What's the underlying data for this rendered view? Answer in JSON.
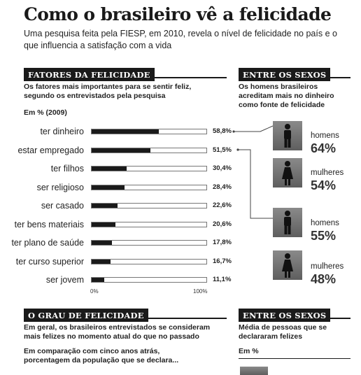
{
  "header": {
    "title": "Como o brasileiro vê a felicidade",
    "subtitle": "Uma pesquisa feita pela FIESP, em 2010, revela o nível de felicidade no país e o que influencia a satisfação com a vida"
  },
  "left_section": {
    "tag": "FATORES DA FELICIDADE",
    "note": "Os fatores mais importantes para se sentir feliz, segundo os entrevistados pela pesquisa",
    "unit": "Em % (2009)"
  },
  "right_section": {
    "tag": "ENTRE OS SEXOS",
    "note": "Os homens brasileiros acreditam mais no dinheiro como fonte de felicidade",
    "groups": [
      {
        "label": "homens",
        "pct": "64%",
        "icon": "male-icon"
      },
      {
        "label": "mulheres",
        "pct": "54%",
        "icon": "female-icon"
      },
      {
        "label": "homens",
        "pct": "55%",
        "icon": "male-icon"
      },
      {
        "label": "mulheres",
        "pct": "48%",
        "icon": "female-icon"
      }
    ]
  },
  "bottom_left": {
    "tag": "O GRAU DE FELICIDADE",
    "note1": "Em geral, os brasileiros entrevistados se consideram mais felizes no momento atual do que no passado",
    "note2": "Em comparação com cinco anos atrás, porcentagem da população que se declara..."
  },
  "bottom_right": {
    "tag": "ENTRE OS SEXOS",
    "note": "Média de pessoas que se declararam felizes",
    "unit": "Em %"
  },
  "chart_data": {
    "type": "bar",
    "orientation": "horizontal",
    "categories": [
      "ter dinheiro",
      "estar empregado",
      "ter filhos",
      "ser religioso",
      "ser casado",
      "ter bens materiais",
      "ter plano de saúde",
      "ter curso superior",
      "ser jovem"
    ],
    "values": [
      58.8,
      51.5,
      30.4,
      28.4,
      22.6,
      20.6,
      17.8,
      16.7,
      11.1
    ],
    "value_labels": [
      "58,8%",
      "51,5%",
      "30,4%",
      "28,4%",
      "22,6%",
      "20,6%",
      "17,8%",
      "16,7%",
      "11,1%"
    ],
    "xlim": [
      0,
      100
    ],
    "x_ticks": [
      "0%",
      "100%"
    ],
    "bar_color": "#1a1a1a"
  },
  "colors": {
    "ink": "#1a1a1a",
    "person_box": "#6e6e6e"
  }
}
